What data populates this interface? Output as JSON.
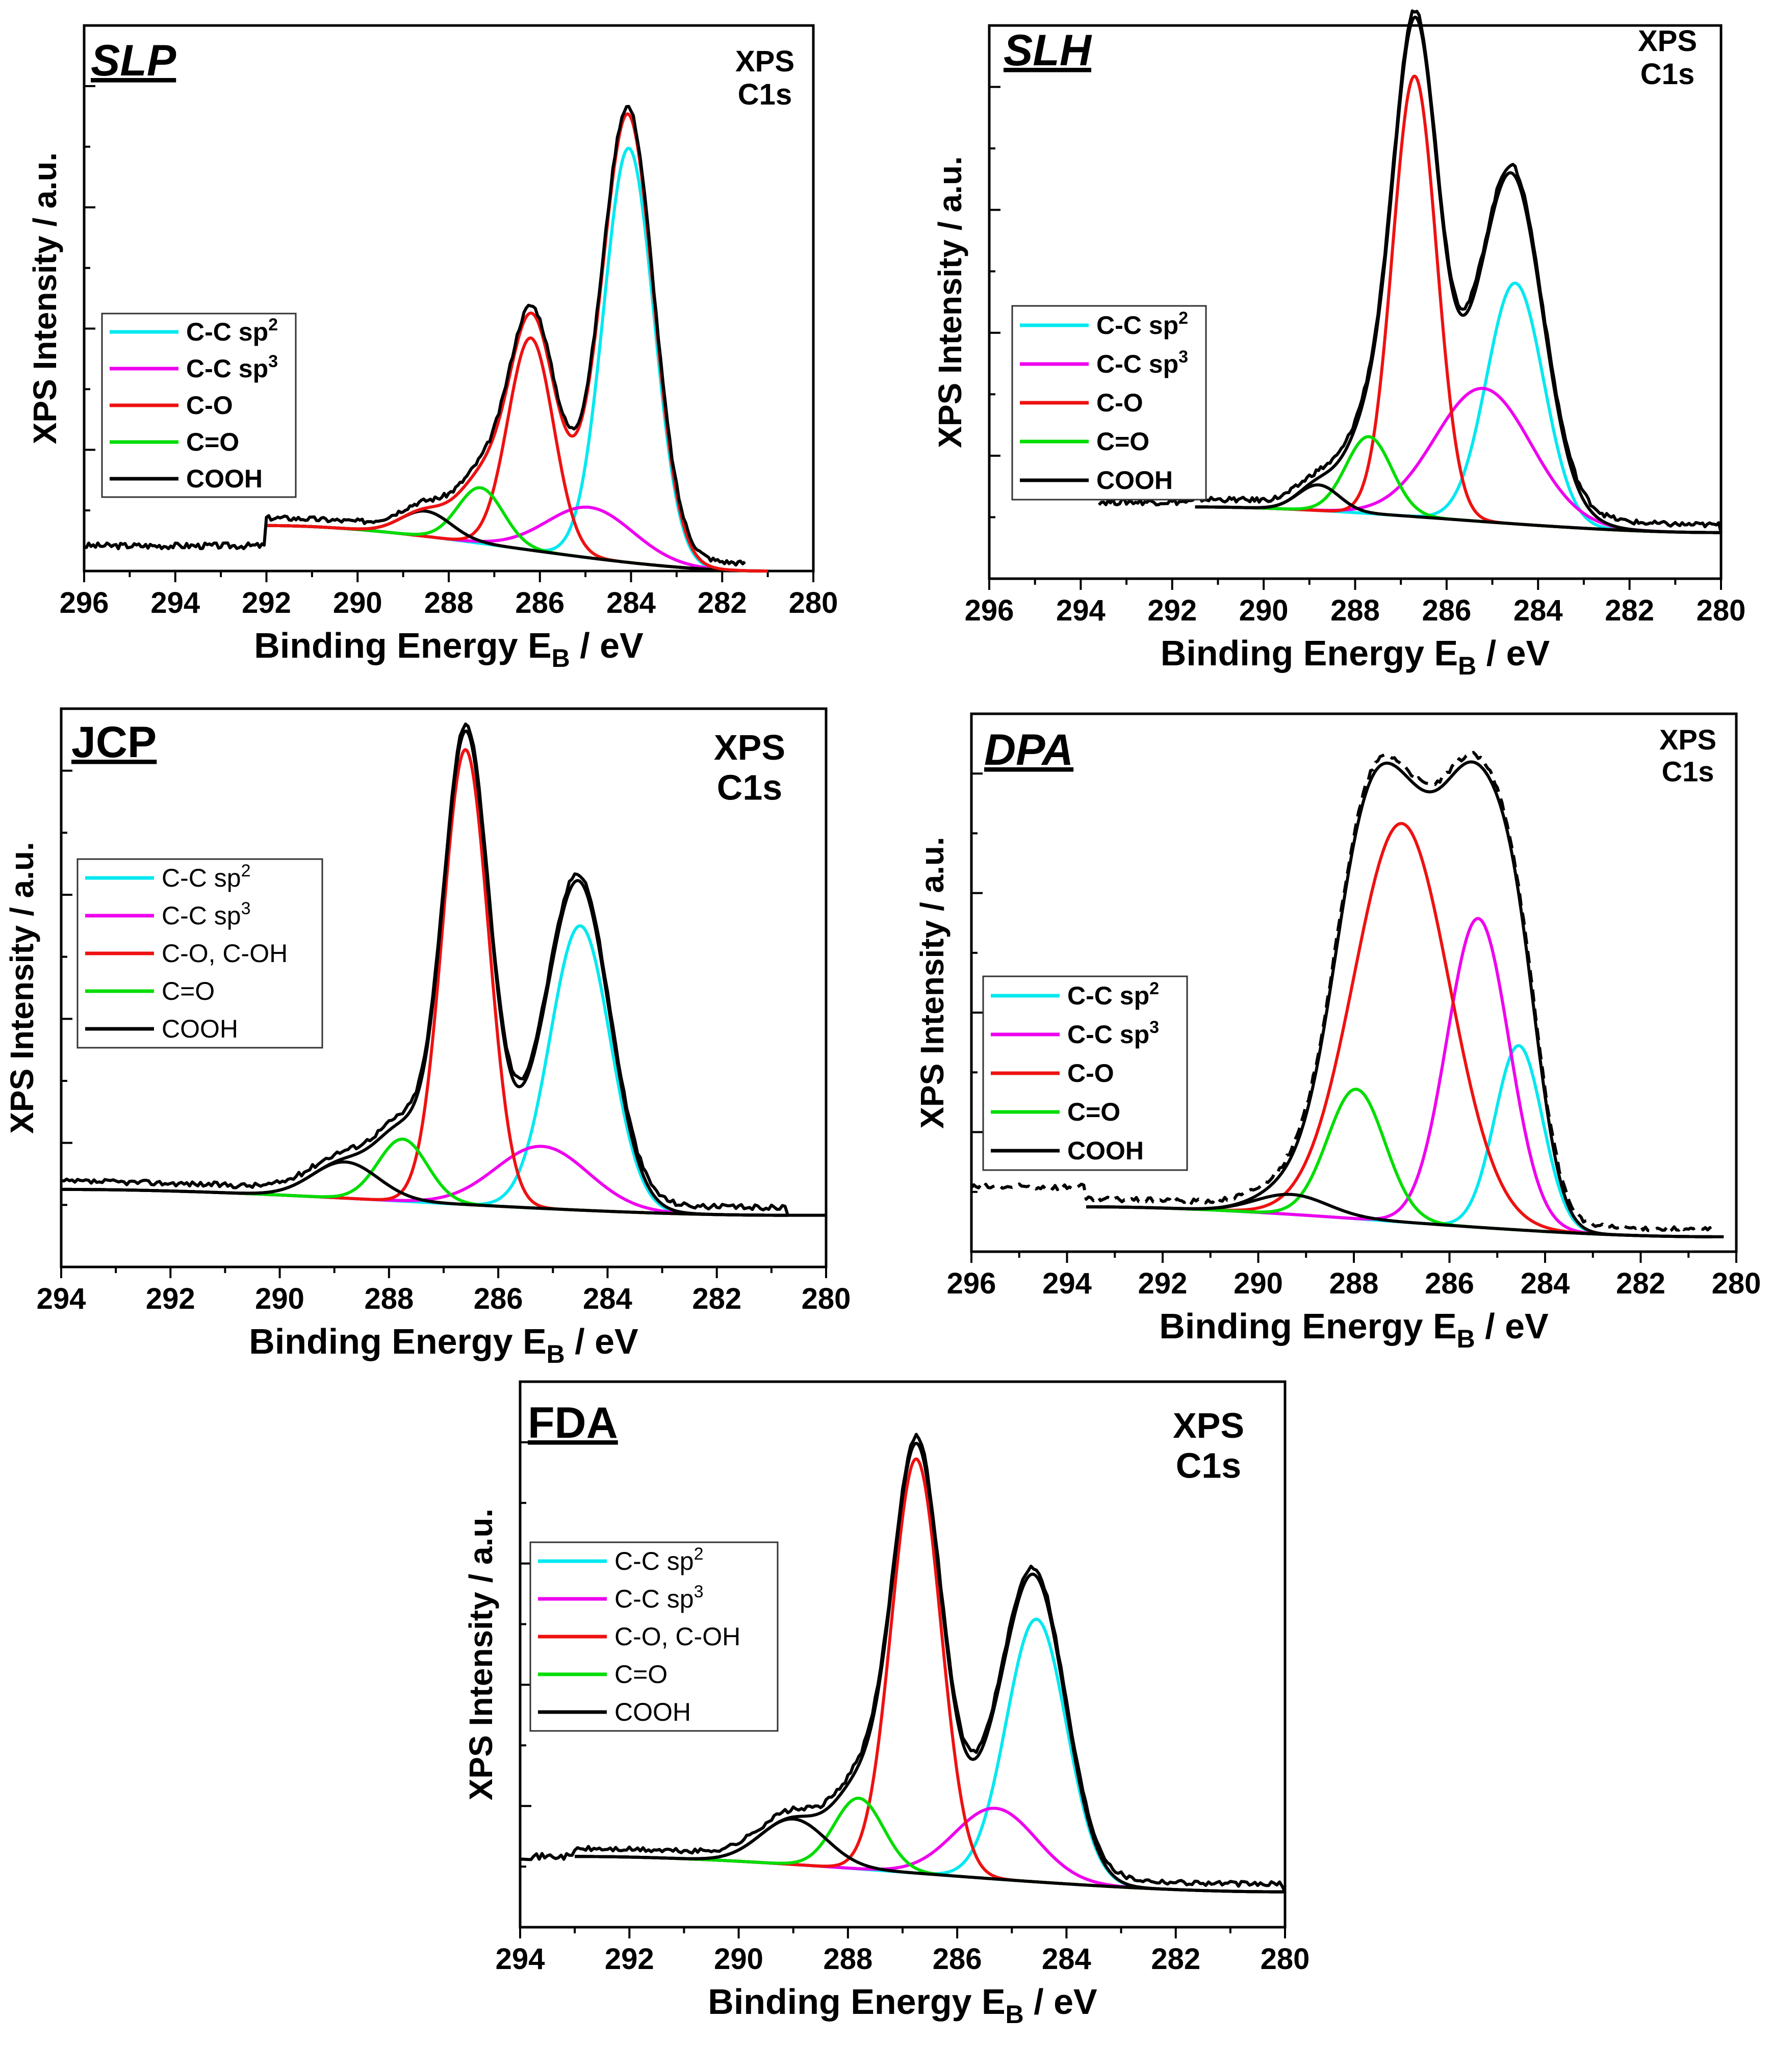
{
  "chart_data": [
    {
      "id": "slp",
      "type": "line",
      "title": "SLP",
      "title_italic": true,
      "note": [
        "XPS",
        "C1s"
      ],
      "xlabel": "Binding Energy  E",
      "xlabel_sub": "B",
      "xlabel_unit": " / eV",
      "ylabel": "XPS Intensity / a.u.",
      "xlim": [
        296,
        280
      ],
      "xticks": [
        "296",
        "294",
        "292",
        "290",
        "288",
        "286",
        "284",
        "282",
        "280"
      ],
      "ylim": [
        0,
        1.08
      ],
      "legend_bold": true,
      "legend": [
        {
          "label": "C-C sp",
          "sup": "2",
          "color": "#00e8f0"
        },
        {
          "label": "C-C sp",
          "sup": "3",
          "color": "#ee00ee"
        },
        {
          "label": "C-O",
          "sup": "",
          "color": "#ee1111"
        },
        {
          "label": "C=O",
          "sup": "",
          "color": "#00dd00"
        },
        {
          "label": "COOH",
          "sup": "",
          "color": "#000000"
        }
      ],
      "background": {
        "x0": 292.0,
        "x1": 281.0,
        "y0": 0.09,
        "y1": 0.0
      },
      "components": [
        {
          "name": "C-C sp2",
          "color": "#00e8f0",
          "center": 284.05,
          "amp": 0.82,
          "sigma": 0.55
        },
        {
          "name": "C-C sp3",
          "color": "#ee00ee",
          "center": 284.9,
          "amp": 0.1,
          "sigma": 0.95
        },
        {
          "name": "C-O",
          "color": "#ee1111",
          "center": 286.2,
          "amp": 0.42,
          "sigma": 0.5
        },
        {
          "name": "C=O",
          "color": "#00dd00",
          "center": 287.3,
          "amp": 0.11,
          "sigma": 0.5
        },
        {
          "name": "COOH",
          "color": "#000000",
          "center": 288.5,
          "amp": 0.05,
          "sigma": 0.55
        }
      ],
      "envelope_color": "#ee1111",
      "raw_data": {
        "x0": 296,
        "x1": 281.5,
        "pre_level": 0.05
      },
      "dashed_raw": false
    },
    {
      "id": "slh",
      "type": "line",
      "title": "SLH",
      "title_italic": true,
      "note": [
        "XPS",
        "C1s"
      ],
      "xlabel": "Binding Energy  E",
      "xlabel_sub": "B",
      "xlabel_unit": " / eV",
      "ylabel": "XPS Intensity / a.u.",
      "xlim": [
        296,
        280
      ],
      "xticks": [
        "296",
        "294",
        "292",
        "290",
        "288",
        "286",
        "284",
        "282",
        "280"
      ],
      "ylim": [
        0,
        1.08
      ],
      "legend_bold": true,
      "legend": [
        {
          "label": "C-C sp",
          "sup": "2",
          "color": "#00e8f0"
        },
        {
          "label": "C-C sp",
          "sup": "3",
          "color": "#ee00ee"
        },
        {
          "label": "C-O",
          "sup": "",
          "color": "#ee1111"
        },
        {
          "label": "C=O",
          "sup": "",
          "color": "#00dd00"
        },
        {
          "label": "COOH",
          "sup": "",
          "color": "#000000"
        }
      ],
      "background": {
        "x0": 291.5,
        "x1": 280.0,
        "y0": 0.14,
        "y1": 0.09
      },
      "components": [
        {
          "name": "C-C sp2",
          "color": "#00e8f0",
          "center": 284.5,
          "amp": 0.47,
          "sigma": 0.62
        },
        {
          "name": "C-C sp3",
          "color": "#ee00ee",
          "center": 285.2,
          "amp": 0.26,
          "sigma": 1.05
        },
        {
          "name": "C-O",
          "color": "#ee1111",
          "center": 286.7,
          "amp": 0.86,
          "sigma": 0.48
        },
        {
          "name": "C=O",
          "color": "#00dd00",
          "center": 287.7,
          "amp": 0.15,
          "sigma": 0.5
        },
        {
          "name": "COOH",
          "color": "#000000",
          "center": 288.8,
          "amp": 0.05,
          "sigma": 0.45
        }
      ],
      "envelope_color": "#000000",
      "raw_data": {
        "x0": 293.6,
        "x1": 280.0,
        "pre_level": 0.15
      },
      "dashed_raw": false
    },
    {
      "id": "jcp",
      "type": "line",
      "title": "JCP",
      "title_italic": false,
      "note": [
        "XPS",
        "C1s"
      ],
      "xlabel": "Binding Energy  E",
      "xlabel_sub": "B",
      "xlabel_unit": " / eV",
      "ylabel": "XPS Intensity / a.u.",
      "xlim": [
        294,
        280
      ],
      "xticks": [
        "294",
        "292",
        "290",
        "288",
        "286",
        "284",
        "282",
        "280"
      ],
      "ylim": [
        0,
        1.08
      ],
      "legend_bold": false,
      "legend": [
        {
          "label": "C-C sp",
          "sup": "2",
          "color": "#00e8f0"
        },
        {
          "label": "C-C sp",
          "sup": "3",
          "color": "#ee00ee"
        },
        {
          "label": "C-O, C-OH",
          "sup": "",
          "color": "#ee1111"
        },
        {
          "label": "C=O",
          "sup": "",
          "color": "#00dd00"
        },
        {
          "label": "COOH",
          "sup": "",
          "color": "#000000"
        }
      ],
      "background": {
        "x0": 294.0,
        "x1": 280.7,
        "y0": 0.15,
        "y1": 0.1
      },
      "components": [
        {
          "name": "C-C sp2",
          "color": "#00e8f0",
          "center": 284.5,
          "amp": 0.55,
          "sigma": 0.55
        },
        {
          "name": "C-C sp3",
          "color": "#ee00ee",
          "center": 285.2,
          "amp": 0.12,
          "sigma": 0.85
        },
        {
          "name": "C-O",
          "color": "#ee1111",
          "center": 286.6,
          "amp": 0.88,
          "sigma": 0.42
        },
        {
          "name": "C=O",
          "color": "#00dd00",
          "center": 287.75,
          "amp": 0.12,
          "sigma": 0.45
        },
        {
          "name": "COOH",
          "color": "#000000",
          "center": 288.8,
          "amp": 0.07,
          "sigma": 0.6
        }
      ],
      "envelope_color": "#000000",
      "raw_data": {
        "x0": 294.0,
        "x1": 280.0,
        "pre_level": 0.15
      },
      "dashed_raw": false
    },
    {
      "id": "dpa",
      "type": "line",
      "title": "DPA",
      "title_italic": true,
      "note": [
        "XPS",
        "C1s"
      ],
      "xlabel": "Binding Energy  E",
      "xlabel_sub": "B",
      "xlabel_unit": " / eV",
      "ylabel": "XPS Intensity / a.u.",
      "xlim": [
        296,
        280
      ],
      "xticks": [
        "296",
        "294",
        "292",
        "290",
        "288",
        "286",
        "284",
        "282",
        "280"
      ],
      "ylim": [
        0,
        1.08
      ],
      "legend_bold": true,
      "legend": [
        {
          "label": "C-C sp",
          "sup": "2",
          "color": "#00e8f0"
        },
        {
          "label": "C-C sp",
          "sup": "3",
          "color": "#ee00ee"
        },
        {
          "label": "C-O",
          "sup": "",
          "color": "#ee1111"
        },
        {
          "label": "C=O",
          "sup": "",
          "color": "#00dd00"
        },
        {
          "label": "COOH",
          "sup": "",
          "color": "#000000"
        }
      ],
      "background": {
        "x0": 293.6,
        "x1": 280.5,
        "y0": 0.09,
        "y1": 0.03
      },
      "components": [
        {
          "name": "C-C sp2",
          "color": "#00e8f0",
          "center": 284.55,
          "amp": 0.37,
          "sigma": 0.5
        },
        {
          "name": "C-C sp3",
          "color": "#ee00ee",
          "center": 285.4,
          "amp": 0.62,
          "sigma": 0.65
        },
        {
          "name": "C-O",
          "color": "#ee1111",
          "center": 287.0,
          "amp": 0.8,
          "sigma": 1.0
        },
        {
          "name": "C=O",
          "color": "#00dd00",
          "center": 287.95,
          "amp": 0.26,
          "sigma": 0.6
        },
        {
          "name": "COOH",
          "color": "#000000",
          "center": 289.3,
          "amp": 0.04,
          "sigma": 0.75
        }
      ],
      "envelope_color": "#000000",
      "raw_data": {
        "x0": 296.0,
        "x1": 280.2,
        "pre_level": 0.13
      },
      "dashed_raw": true
    },
    {
      "id": "fda",
      "type": "line",
      "title": "FDA",
      "title_italic": false,
      "note": [
        "XPS",
        "C1s"
      ],
      "xlabel": "Binding Energy  E",
      "xlabel_sub": "B",
      "xlabel_unit": " / eV",
      "ylabel": "XPS Intensity / a.u.",
      "xlim": [
        294,
        280
      ],
      "xticks": [
        "294",
        "292",
        "290",
        "288",
        "286",
        "284",
        "282",
        "280"
      ],
      "ylim": [
        0,
        1.08
      ],
      "legend_bold": false,
      "legend": [
        {
          "label": "C-C sp",
          "sup": "2",
          "color": "#00e8f0"
        },
        {
          "label": "C-C sp",
          "sup": "3",
          "color": "#ee00ee"
        },
        {
          "label": "C-O, C-OH",
          "sup": "",
          "color": "#ee1111"
        },
        {
          "label": "C=O",
          "sup": "",
          "color": "#00dd00"
        },
        {
          "label": "COOH",
          "sup": "",
          "color": "#000000"
        }
      ],
      "background": {
        "x0": 293.0,
        "x1": 280.0,
        "y0": 0.14,
        "y1": 0.07
      },
      "components": [
        {
          "name": "C-C sp2",
          "color": "#00e8f0",
          "center": 284.55,
          "amp": 0.52,
          "sigma": 0.55
        },
        {
          "name": "C-C sp3",
          "color": "#ee00ee",
          "center": 285.3,
          "amp": 0.14,
          "sigma": 0.75
        },
        {
          "name": "C-O",
          "color": "#ee1111",
          "center": 286.75,
          "amp": 0.82,
          "sigma": 0.45
        },
        {
          "name": "C=O",
          "color": "#00dd00",
          "center": 287.8,
          "amp": 0.14,
          "sigma": 0.45
        },
        {
          "name": "COOH",
          "color": "#000000",
          "center": 289.0,
          "amp": 0.09,
          "sigma": 0.6
        }
      ],
      "envelope_color": "#000000",
      "raw_data": {
        "x0": 294.0,
        "x1": 280.0,
        "pre_level": 0.14
      },
      "dashed_raw": false
    }
  ]
}
